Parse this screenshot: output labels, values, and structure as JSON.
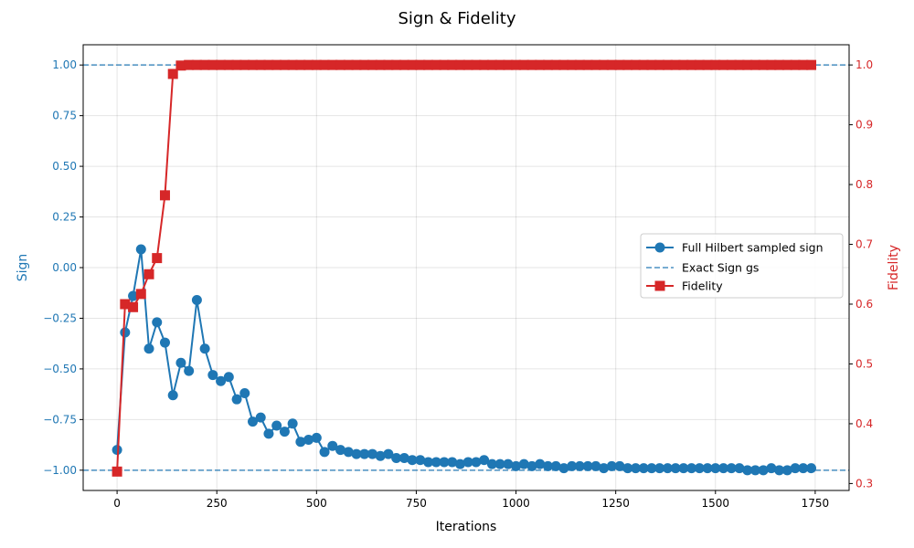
{
  "chart_data": {
    "type": "line",
    "title": "Sign & Fidelity",
    "xlabel": "Iterations",
    "ylabel_left": "Sign",
    "ylabel_right": "Fidelity",
    "xlim": [
      -85,
      1835
    ],
    "ylim_left": [
      -1.1,
      1.1
    ],
    "ylim_right": [
      0.2884,
      1.0338
    ],
    "grid": true,
    "legend_position": "center-right",
    "x_ticks": [
      "0",
      "250",
      "500",
      "750",
      "1000",
      "1250",
      "1500",
      "1750"
    ],
    "y_left_ticks": [
      "−1.00",
      "−0.75",
      "−0.50",
      "−0.25",
      "0.00",
      "0.25",
      "0.50",
      "0.75",
      "1.00"
    ],
    "y_right_ticks": [
      "0.3",
      "0.4",
      "0.5",
      "0.6",
      "0.7",
      "0.8",
      "0.9",
      "1.0"
    ],
    "series": [
      {
        "name": "Full Hilbert sampled sign",
        "axis": "left",
        "color": "#1f77b4",
        "marker": "circle",
        "x": [
          0,
          20,
          40,
          60,
          80,
          100,
          120,
          140,
          160,
          180,
          200,
          220,
          240,
          260,
          280,
          300,
          320,
          340,
          360,
          380,
          400,
          420,
          440,
          460,
          480,
          500,
          520,
          540,
          560,
          580,
          600,
          620,
          640,
          660,
          680,
          700,
          720,
          740,
          760,
          780,
          800,
          820,
          840,
          860,
          880,
          900,
          920,
          940,
          960,
          980,
          1000,
          1020,
          1040,
          1060,
          1080,
          1100,
          1120,
          1140,
          1160,
          1180,
          1200,
          1220,
          1240,
          1260,
          1280,
          1300,
          1320,
          1340,
          1360,
          1380,
          1400,
          1420,
          1440,
          1460,
          1480,
          1500,
          1520,
          1540,
          1560,
          1580,
          1600,
          1620,
          1640,
          1660,
          1680,
          1700,
          1720,
          1740
        ],
        "y": [
          -0.9,
          -0.32,
          -0.14,
          0.09,
          -0.4,
          -0.27,
          -0.37,
          -0.63,
          -0.47,
          -0.51,
          -0.16,
          -0.4,
          -0.53,
          -0.56,
          -0.54,
          -0.65,
          -0.62,
          -0.76,
          -0.74,
          -0.82,
          -0.78,
          -0.81,
          -0.77,
          -0.86,
          -0.85,
          -0.84,
          -0.91,
          -0.88,
          -0.9,
          -0.91,
          -0.92,
          -0.92,
          -0.92,
          -0.93,
          -0.92,
          -0.94,
          -0.94,
          -0.95,
          -0.95,
          -0.96,
          -0.96,
          -0.96,
          -0.96,
          -0.97,
          -0.96,
          -0.96,
          -0.95,
          -0.97,
          -0.97,
          -0.97,
          -0.98,
          -0.97,
          -0.98,
          -0.97,
          -0.98,
          -0.98,
          -0.99,
          -0.98,
          -0.98,
          -0.98,
          -0.98,
          -0.99,
          -0.98,
          -0.98,
          -0.99,
          -0.99,
          -0.99,
          -0.99,
          -0.99,
          -0.99,
          -0.99,
          -0.99,
          -0.99,
          -0.99,
          -0.99,
          -0.99,
          -0.99,
          -0.99,
          -0.99,
          -1.0,
          -1.0,
          -1.0,
          -0.99,
          -1.0,
          -1.0,
          -0.99,
          -0.99,
          -0.99
        ]
      },
      {
        "name": "Exact Sign gs",
        "axis": "left",
        "color": "#1f77b4",
        "style": "dashed",
        "hlines": [
          -1.0,
          1.0
        ]
      },
      {
        "name": "Fidelity",
        "axis": "right",
        "color": "#d62728",
        "marker": "square",
        "x": [
          0,
          20,
          40,
          60,
          80,
          100,
          120,
          140,
          160,
          180,
          200,
          220,
          240,
          260,
          280,
          300,
          320,
          340,
          360,
          380,
          400,
          420,
          440,
          460,
          480,
          500,
          520,
          540,
          560,
          580,
          600,
          620,
          640,
          660,
          680,
          700,
          720,
          740,
          760,
          780,
          800,
          820,
          840,
          860,
          880,
          900,
          920,
          940,
          960,
          980,
          1000,
          1020,
          1040,
          1060,
          1080,
          1100,
          1120,
          1140,
          1160,
          1180,
          1200,
          1220,
          1240,
          1260,
          1280,
          1300,
          1320,
          1340,
          1360,
          1380,
          1400,
          1420,
          1440,
          1460,
          1480,
          1500,
          1520,
          1540,
          1560,
          1580,
          1600,
          1620,
          1640,
          1660,
          1680,
          1700,
          1720,
          1740
        ],
        "y": [
          0.32,
          0.6,
          0.595,
          0.617,
          0.65,
          0.677,
          0.782,
          0.985,
          0.999,
          1.0,
          1.0,
          1.0,
          1.0,
          1.0,
          1.0,
          1.0,
          1.0,
          1.0,
          1.0,
          1.0,
          1.0,
          1.0,
          1.0,
          1.0,
          1.0,
          1.0,
          1.0,
          1.0,
          1.0,
          1.0,
          1.0,
          1.0,
          1.0,
          1.0,
          1.0,
          1.0,
          1.0,
          1.0,
          1.0,
          1.0,
          1.0,
          1.0,
          1.0,
          1.0,
          1.0,
          1.0,
          1.0,
          1.0,
          1.0,
          1.0,
          1.0,
          1.0,
          1.0,
          1.0,
          1.0,
          1.0,
          1.0,
          1.0,
          1.0,
          1.0,
          1.0,
          1.0,
          1.0,
          1.0,
          1.0,
          1.0,
          1.0,
          1.0,
          1.0,
          1.0,
          1.0,
          1.0,
          1.0,
          1.0,
          1.0,
          1.0,
          1.0,
          1.0,
          1.0,
          1.0,
          1.0,
          1.0,
          1.0,
          1.0,
          1.0,
          1.0,
          1.0,
          1.0
        ]
      }
    ]
  }
}
